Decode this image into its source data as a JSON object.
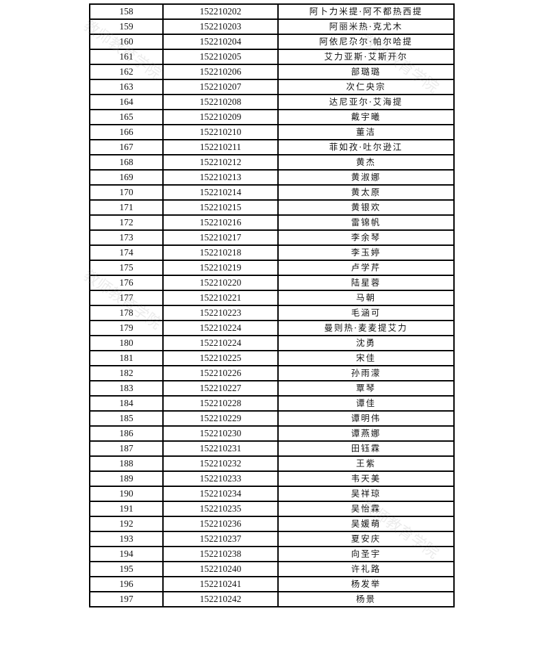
{
  "watermark": "教师教育学院",
  "rows": [
    {
      "no": "158",
      "id": "152210202",
      "name": "阿卜力米提·阿不都热西提"
    },
    {
      "no": "159",
      "id": "152210203",
      "name": "阿丽米热·克尤木"
    },
    {
      "no": "160",
      "id": "152210204",
      "name": "阿依尼尕尔·帕尔哈提"
    },
    {
      "no": "161",
      "id": "152210205",
      "name": "艾力亚斯·艾斯开尔"
    },
    {
      "no": "162",
      "id": "152210206",
      "name": "部璐璐"
    },
    {
      "no": "163",
      "id": "152210207",
      "name": "次仁央宗"
    },
    {
      "no": "164",
      "id": "152210208",
      "name": "达尼亚尔·艾海提"
    },
    {
      "no": "165",
      "id": "152210209",
      "name": "戴宇曦"
    },
    {
      "no": "166",
      "id": "152210210",
      "name": "董洁"
    },
    {
      "no": "167",
      "id": "152210211",
      "name": "菲如孜·吐尔逊江"
    },
    {
      "no": "168",
      "id": "152210212",
      "name": "黄杰"
    },
    {
      "no": "169",
      "id": "152210213",
      "name": "黄淑娜"
    },
    {
      "no": "170",
      "id": "152210214",
      "name": "黄太原"
    },
    {
      "no": "171",
      "id": "152210215",
      "name": "黄银欢"
    },
    {
      "no": "172",
      "id": "152210216",
      "name": "雷锦帆"
    },
    {
      "no": "173",
      "id": "152210217",
      "name": "李余琴"
    },
    {
      "no": "174",
      "id": "152210218",
      "name": "李玉婷"
    },
    {
      "no": "175",
      "id": "152210219",
      "name": "卢学芹"
    },
    {
      "no": "176",
      "id": "152210220",
      "name": "陆星蓉"
    },
    {
      "no": "177",
      "id": "152210221",
      "name": "马朝"
    },
    {
      "no": "178",
      "id": "152210223",
      "name": "毛涵可"
    },
    {
      "no": "179",
      "id": "152210224",
      "name": "曼则热·麦麦提艾力"
    },
    {
      "no": "180",
      "id": "152210224",
      "name": "沈勇"
    },
    {
      "no": "181",
      "id": "152210225",
      "name": "宋佳"
    },
    {
      "no": "182",
      "id": "152210226",
      "name": "孙雨濛"
    },
    {
      "no": "183",
      "id": "152210227",
      "name": "覃琴"
    },
    {
      "no": "184",
      "id": "152210228",
      "name": "谭佳"
    },
    {
      "no": "185",
      "id": "152210229",
      "name": "谭明伟"
    },
    {
      "no": "186",
      "id": "152210230",
      "name": "谭燕娜"
    },
    {
      "no": "187",
      "id": "152210231",
      "name": "田钰霖"
    },
    {
      "no": "188",
      "id": "152210232",
      "name": "王紫"
    },
    {
      "no": "189",
      "id": "152210233",
      "name": "韦天美"
    },
    {
      "no": "190",
      "id": "152210234",
      "name": "吴祥琼"
    },
    {
      "no": "191",
      "id": "152210235",
      "name": "吴怡霖"
    },
    {
      "no": "192",
      "id": "152210236",
      "name": "吴媛萌"
    },
    {
      "no": "193",
      "id": "152210237",
      "name": "夏安庆"
    },
    {
      "no": "194",
      "id": "152210238",
      "name": "向圣宇"
    },
    {
      "no": "195",
      "id": "152210240",
      "name": "许礼路"
    },
    {
      "no": "196",
      "id": "152210241",
      "name": "杨发举"
    },
    {
      "no": "197",
      "id": "152210242",
      "name": "杨景"
    }
  ]
}
